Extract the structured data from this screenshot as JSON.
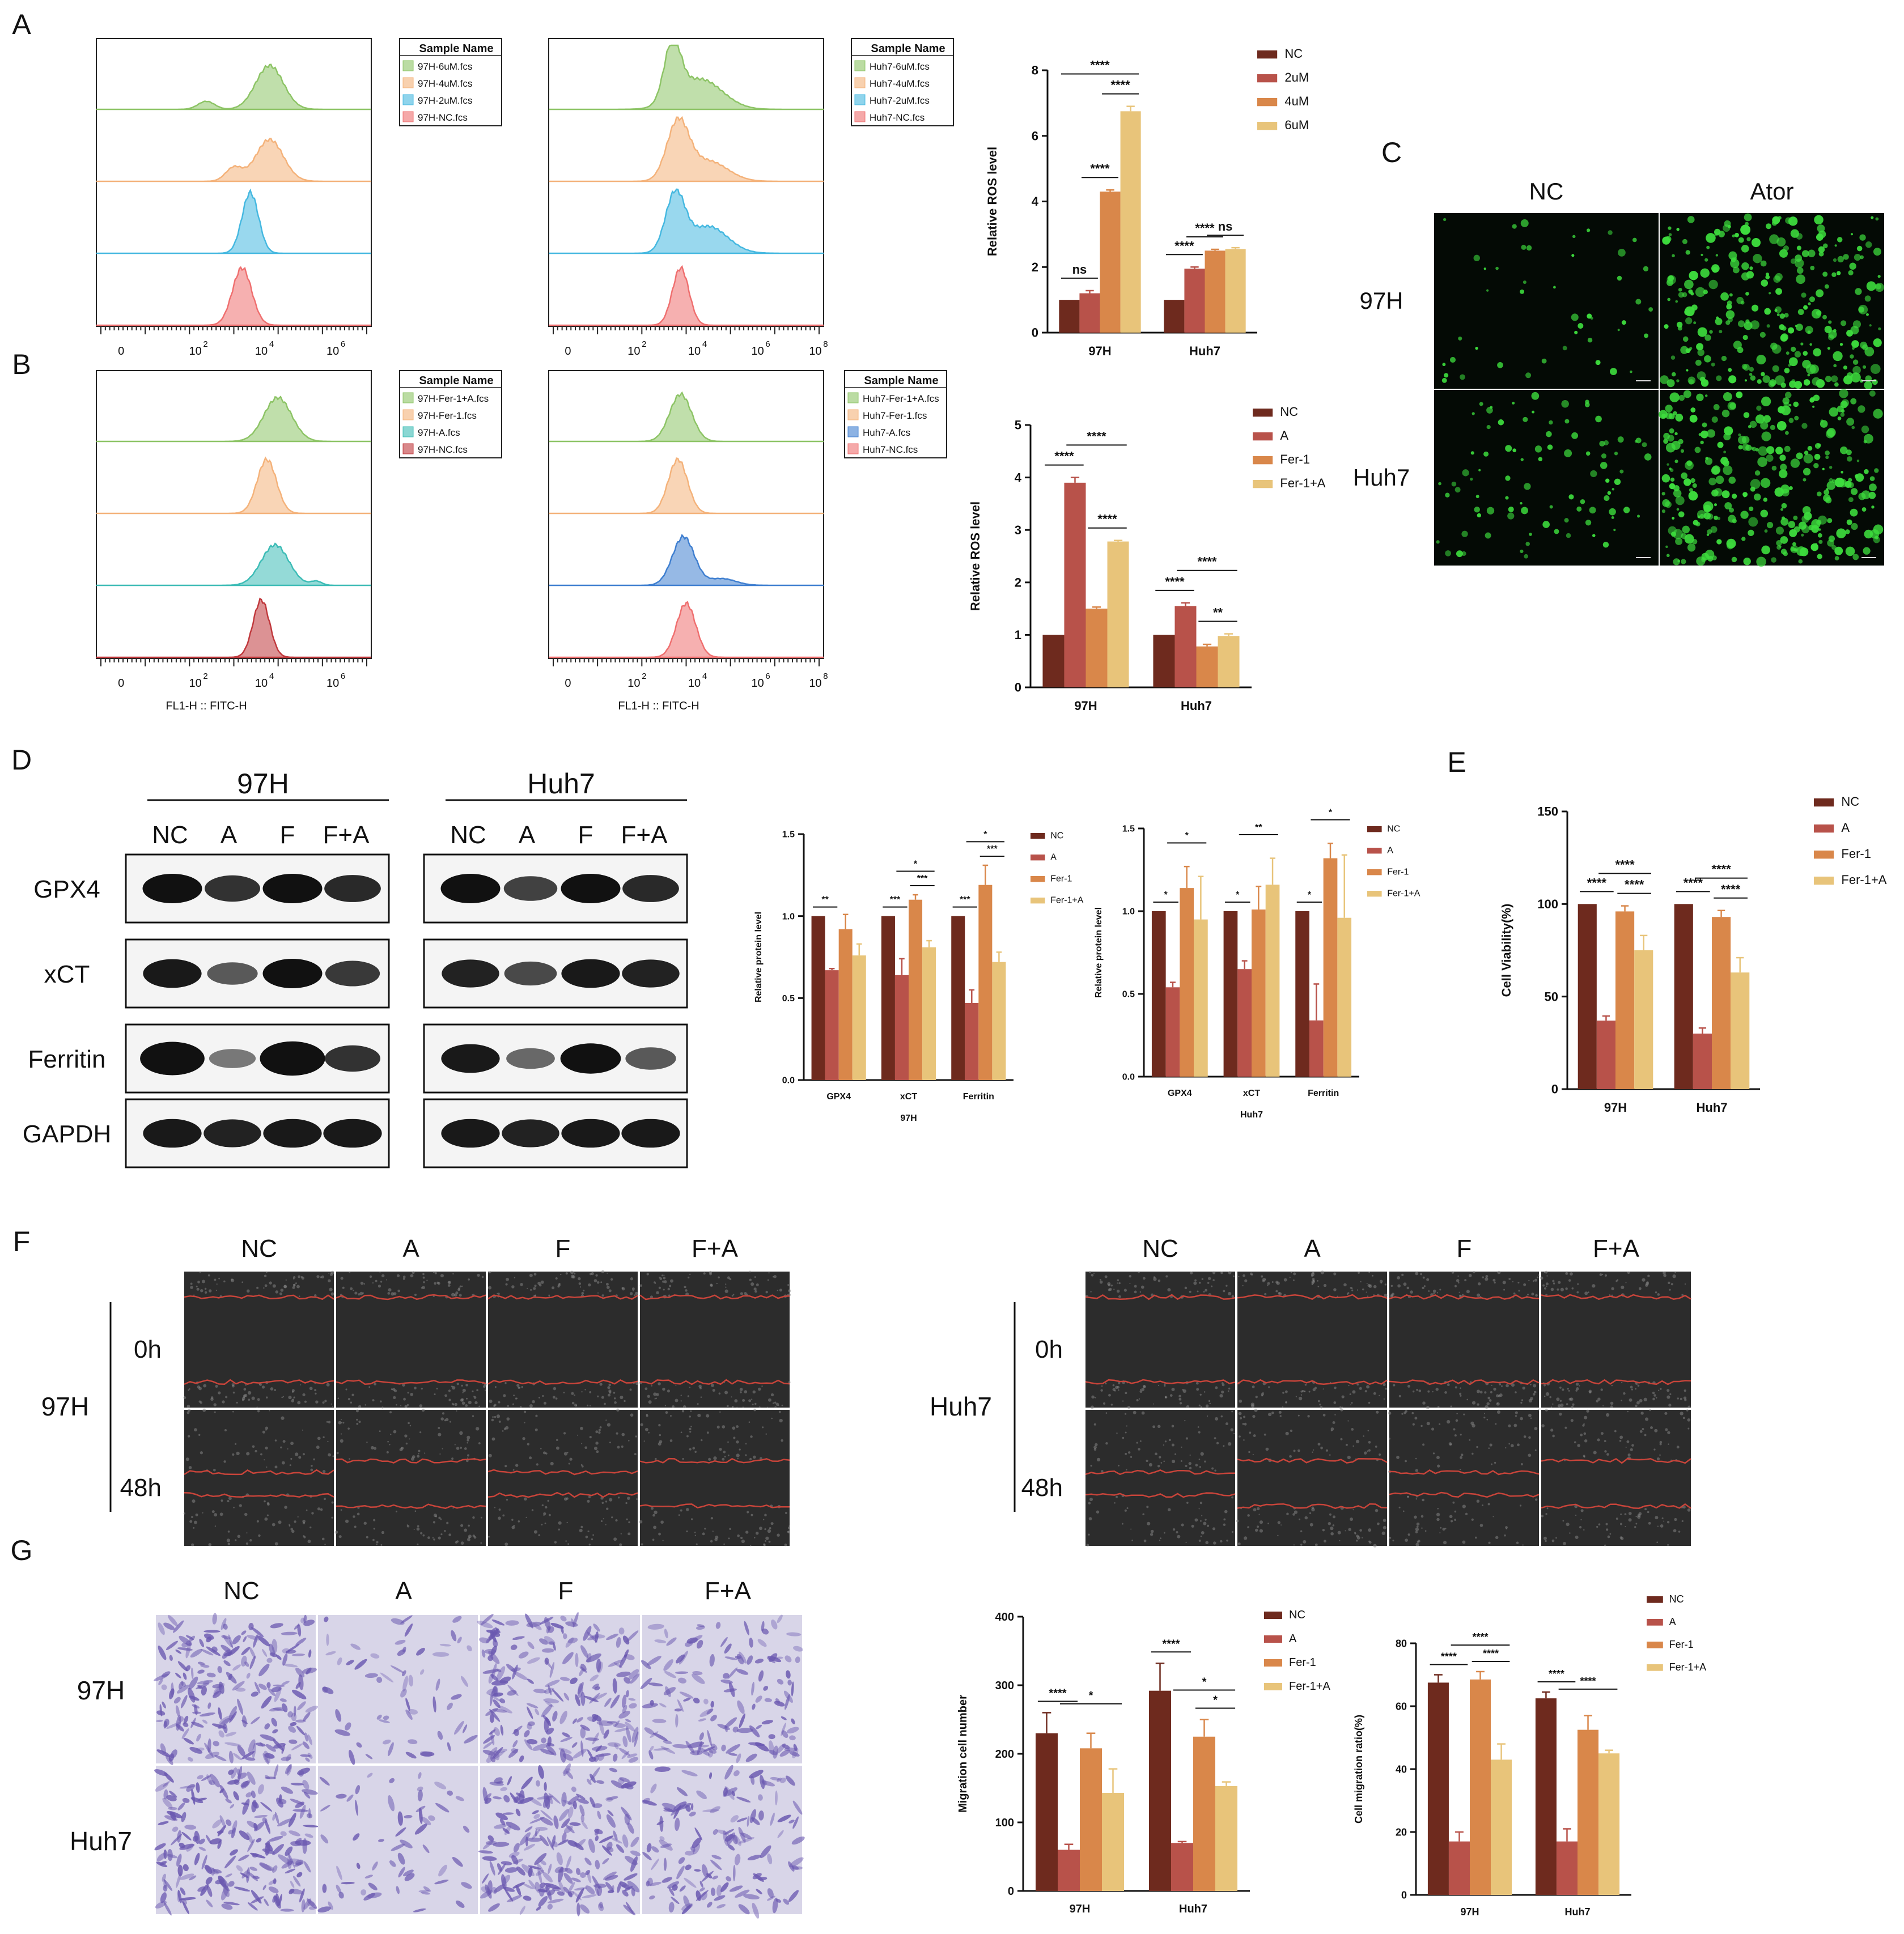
{
  "panels": {
    "A": "A",
    "B": "B",
    "C": "C",
    "D": "D",
    "E": "E",
    "F": "F",
    "G": "G"
  },
  "colors": {
    "nc": "#6e2a1e",
    "a": "#b8524a",
    "fer": "#d9874a",
    "fera": "#e8c47a",
    "green_hist": "#8dc466",
    "orange_hist": "#f4b27a",
    "blue_hist": "#45b8e0",
    "red_hist": "#ef6f6f",
    "teal_hist": "#3dbcb6",
    "dblue_hist": "#3f7fd0",
    "maroon_hist": "#c0383c",
    "fluor_bg": "#040a05",
    "fluor_dot": "#3ddc3d",
    "wound_bg": "#2c2c2c",
    "wound_line": "#c8443a",
    "transwell_bg": "#d8d5e8",
    "transwell_cell": "#6a58b0"
  },
  "flow": {
    "sample_header": "Sample Name",
    "axis_ticks_a_left": [
      "0",
      "10",
      "10",
      "10"
    ],
    "axis_ticks_exp": [
      "2",
      "4",
      "6"
    ],
    "axis_ticks_right_exp": [
      "2",
      "4",
      "6",
      "8"
    ],
    "xlabel": "FL1-H :: FITC-H",
    "a_left_legend": [
      "97H-6uM.fcs",
      "97H-4uM.fcs",
      "97H-2uM.fcs",
      "97H-NC.fcs"
    ],
    "a_right_legend": [
      "Huh7-6uM.fcs",
      "Huh7-4uM.fcs",
      "Huh7-2uM.fcs",
      "Huh7-NC.fcs"
    ],
    "b_left_legend": [
      "97H-Fer-1+A.fcs",
      "97H-Fer-1.fcs",
      "97H-A.fcs",
      "97H-NC.fcs"
    ],
    "b_right_legend": [
      "Huh7-Fer-1+A.fcs",
      "Huh7-Fer-1.fcs",
      "Huh7-A.fcs",
      "Huh7-NC.fcs"
    ]
  },
  "chart_data": [
    {
      "id": "A-ros",
      "type": "bar",
      "ylabel": "Relative ROS level",
      "ylim": [
        0,
        8
      ],
      "yticks": [
        0,
        2,
        4,
        6,
        8
      ],
      "categories": [
        "97H",
        "Huh7"
      ],
      "series": [
        {
          "name": "NC",
          "values": [
            1.0,
            1.0
          ],
          "err": [
            0,
            0
          ]
        },
        {
          "name": "2uM",
          "values": [
            1.2,
            1.95
          ],
          "err": [
            0.08,
            0.05
          ]
        },
        {
          "name": "4uM",
          "values": [
            4.3,
            2.5
          ],
          "err": [
            0.05,
            0.04
          ]
        },
        {
          "name": "6uM",
          "values": [
            6.75,
            2.55
          ],
          "err": [
            0.15,
            0.04
          ]
        }
      ],
      "sig": [
        {
          "g": 0,
          "a": 0,
          "b": 1,
          "label": "ns"
        },
        {
          "g": 0,
          "a": 1,
          "b": 2,
          "label": "****"
        },
        {
          "g": 0,
          "a": 2,
          "b": 3,
          "label": "****"
        },
        {
          "g": 0,
          "a": 0,
          "b": 3,
          "label": "****"
        },
        {
          "g": 1,
          "a": 0,
          "b": 1,
          "label": "****"
        },
        {
          "g": 1,
          "a": 1,
          "b": 2,
          "label": "****"
        },
        {
          "g": 1,
          "a": 2,
          "b": 3,
          "label": "ns"
        }
      ]
    },
    {
      "id": "B-ros",
      "type": "bar",
      "ylabel": "Relative ROS level",
      "ylim": [
        0,
        5
      ],
      "yticks": [
        0,
        1,
        2,
        3,
        4,
        5
      ],
      "categories": [
        "97H",
        "Huh7"
      ],
      "series": [
        {
          "name": "NC",
          "values": [
            1.0,
            1.0
          ],
          "err": [
            0,
            0
          ]
        },
        {
          "name": "A",
          "values": [
            3.9,
            1.55
          ],
          "err": [
            0.1,
            0.06
          ]
        },
        {
          "name": "Fer-1",
          "values": [
            1.5,
            0.78
          ],
          "err": [
            0.03,
            0.04
          ]
        },
        {
          "name": "Fer-1+A",
          "values": [
            2.78,
            0.98
          ],
          "err": [
            0.02,
            0.04
          ]
        }
      ],
      "sig": [
        {
          "g": 0,
          "a": 0,
          "b": 1,
          "label": "****"
        },
        {
          "g": 0,
          "a": 2,
          "b": 3,
          "label": "****"
        },
        {
          "g": 0,
          "a": 1,
          "b": 3,
          "label": "****"
        },
        {
          "g": 1,
          "a": 0,
          "b": 1,
          "label": "****"
        },
        {
          "g": 1,
          "a": 2,
          "b": 3,
          "label": "**"
        },
        {
          "g": 1,
          "a": 1,
          "b": 3,
          "label": "****"
        }
      ]
    },
    {
      "id": "D-97H",
      "type": "bar",
      "ylabel": "Relative protein level",
      "xlabel": "97H",
      "ylim": [
        0,
        1.5
      ],
      "yticks": [
        0,
        0.5,
        1.0,
        1.5
      ],
      "categories": [
        "GPX4",
        "xCT",
        "Ferritin"
      ],
      "series": [
        {
          "name": "NC",
          "values": [
            1.0,
            1.0,
            1.0
          ],
          "err": [
            0,
            0,
            0
          ]
        },
        {
          "name": "A",
          "values": [
            0.67,
            0.64,
            0.47
          ],
          "err": [
            0.01,
            0.1,
            0.08
          ]
        },
        {
          "name": "Fer-1",
          "values": [
            0.92,
            1.1,
            1.19
          ],
          "err": [
            0.09,
            0.03,
            0.12
          ]
        },
        {
          "name": "Fer-1+A",
          "values": [
            0.76,
            0.81,
            0.72
          ],
          "err": [
            0.07,
            0.04,
            0.06
          ]
        }
      ],
      "sig": [
        {
          "g": 0,
          "a": 0,
          "b": 1,
          "label": "**"
        },
        {
          "g": 1,
          "a": 0,
          "b": 1,
          "label": "***"
        },
        {
          "g": 1,
          "a": 2,
          "b": 3,
          "label": "***"
        },
        {
          "g": 1,
          "a": 1,
          "b": 3,
          "label": "*"
        },
        {
          "g": 2,
          "a": 0,
          "b": 1,
          "label": "***"
        },
        {
          "g": 2,
          "a": 2,
          "b": 3,
          "label": "***"
        },
        {
          "g": 2,
          "a": 1,
          "b": 3,
          "label": "*"
        }
      ]
    },
    {
      "id": "D-Huh7",
      "type": "bar",
      "ylabel": "Relative protein level",
      "xlabel": "Huh7",
      "ylim": [
        0,
        1.5
      ],
      "yticks": [
        0,
        0.5,
        1.0,
        1.5
      ],
      "categories": [
        "GPX4",
        "xCT",
        "Ferritin"
      ],
      "series": [
        {
          "name": "NC",
          "values": [
            1.0,
            1.0,
            1.0
          ],
          "err": [
            0,
            0,
            0
          ]
        },
        {
          "name": "A",
          "values": [
            0.54,
            0.65,
            0.34
          ],
          "err": [
            0.03,
            0.05,
            0.22
          ]
        },
        {
          "name": "Fer-1",
          "values": [
            1.14,
            1.01,
            1.32
          ],
          "err": [
            0.13,
            0.14,
            0.09
          ]
        },
        {
          "name": "Fer-1+A",
          "values": [
            0.95,
            1.16,
            0.96
          ],
          "err": [
            0.26,
            0.16,
            0.38
          ]
        }
      ],
      "sig": [
        {
          "g": 0,
          "a": 0,
          "b": 1,
          "label": "*"
        },
        {
          "g": 0,
          "a": 1,
          "b": 3,
          "label": "*"
        },
        {
          "g": 1,
          "a": 0,
          "b": 1,
          "label": "*"
        },
        {
          "g": 1,
          "a": 1,
          "b": 3,
          "label": "**"
        },
        {
          "g": 2,
          "a": 0,
          "b": 1,
          "label": "*"
        },
        {
          "g": 2,
          "a": 1,
          "b": 3,
          "label": "*"
        }
      ]
    },
    {
      "id": "E-viability",
      "type": "bar",
      "ylabel": "Cell Viability(%)",
      "ylim": [
        0,
        150
      ],
      "yticks": [
        0,
        50,
        100,
        150
      ],
      "categories": [
        "97H",
        "Huh7"
      ],
      "series": [
        {
          "name": "NC",
          "values": [
            100,
            100
          ],
          "err": [
            0,
            0
          ]
        },
        {
          "name": "A",
          "values": [
            37,
            30
          ],
          "err": [
            2.5,
            3
          ]
        },
        {
          "name": "Fer-1",
          "values": [
            96,
            93
          ],
          "err": [
            3,
            3.5
          ]
        },
        {
          "name": "Fer-1+A",
          "values": [
            75,
            63
          ],
          "err": [
            8,
            8
          ]
        }
      ],
      "sig": [
        {
          "g": 0,
          "a": 0,
          "b": 1,
          "label": "****"
        },
        {
          "g": 0,
          "a": 2,
          "b": 3,
          "label": "****"
        },
        {
          "g": 0,
          "a": 1,
          "b": 3,
          "label": "****"
        },
        {
          "g": 1,
          "a": 0,
          "b": 1,
          "label": "****"
        },
        {
          "g": 1,
          "a": 2,
          "b": 3,
          "label": "****"
        },
        {
          "g": 1,
          "a": 1,
          "b": 3,
          "label": "****"
        }
      ]
    },
    {
      "id": "G-number",
      "type": "bar",
      "ylabel": "Migration cell number",
      "ylim": [
        0,
        400
      ],
      "yticks": [
        0,
        100,
        200,
        300,
        400
      ],
      "categories": [
        "97H",
        "Huh7"
      ],
      "series": [
        {
          "name": "NC",
          "values": [
            230,
            292
          ],
          "err": [
            30,
            40
          ]
        },
        {
          "name": "A",
          "values": [
            60,
            70
          ],
          "err": [
            8,
            2
          ]
        },
        {
          "name": "Fer-1",
          "values": [
            208,
            225
          ],
          "err": [
            22,
            25
          ]
        },
        {
          "name": "Fer-1+A",
          "values": [
            143,
            153
          ],
          "err": [
            35,
            6
          ]
        }
      ],
      "sig": [
        {
          "g": 0,
          "a": 0,
          "b": 1,
          "label": "****"
        },
        {
          "g": 0,
          "a": 1,
          "b": 3,
          "label": "*"
        },
        {
          "g": 1,
          "a": 0,
          "b": 1,
          "label": "****"
        },
        {
          "g": 1,
          "a": 2,
          "b": 3,
          "label": "*"
        },
        {
          "g": 1,
          "a": 1,
          "b": 3,
          "label": "*"
        }
      ]
    },
    {
      "id": "G-ratio",
      "type": "bar",
      "ylabel": "Cell migration ratio(%)",
      "ylim": [
        0,
        80
      ],
      "yticks": [
        0,
        20,
        40,
        60,
        80
      ],
      "categories": [
        "97H",
        "Huh7"
      ],
      "series": [
        {
          "name": "NC",
          "values": [
            67.5,
            62.5
          ],
          "err": [
            2.5,
            2
          ]
        },
        {
          "name": "A",
          "values": [
            17,
            17
          ],
          "err": [
            3,
            4
          ]
        },
        {
          "name": "Fer-1",
          "values": [
            68.5,
            52.5
          ],
          "err": [
            2.5,
            4.5
          ]
        },
        {
          "name": "Fer-1+A",
          "values": [
            43,
            45
          ],
          "err": [
            5,
            1
          ]
        }
      ],
      "sig": [
        {
          "g": 0,
          "a": 0,
          "b": 1,
          "label": "****"
        },
        {
          "g": 0,
          "a": 2,
          "b": 3,
          "label": "****"
        },
        {
          "g": 0,
          "a": 1,
          "b": 3,
          "label": "****"
        },
        {
          "g": 1,
          "a": 0,
          "b": 1,
          "label": "****"
        },
        {
          "g": 1,
          "a": 1,
          "b": 3,
          "label": "****"
        }
      ]
    }
  ],
  "panel_c": {
    "cols": [
      "NC",
      "Ator"
    ],
    "rows": [
      "97H",
      "Huh7"
    ]
  },
  "panel_d_blot": {
    "groups": [
      "97H",
      "Huh7"
    ],
    "lanes": [
      "NC",
      "A",
      "F",
      "F+A"
    ],
    "proteins": [
      "GPX4",
      "xCT",
      "Ferritin",
      "GAPDH"
    ]
  },
  "panel_f": {
    "cols": [
      "NC",
      "A",
      "F",
      "F+A"
    ],
    "times": [
      "0h",
      "48h"
    ],
    "lines": [
      "97H",
      "Huh7"
    ]
  },
  "panel_g": {
    "cols": [
      "NC",
      "A",
      "F",
      "F+A"
    ],
    "rows": [
      "97H",
      "Huh7"
    ]
  }
}
